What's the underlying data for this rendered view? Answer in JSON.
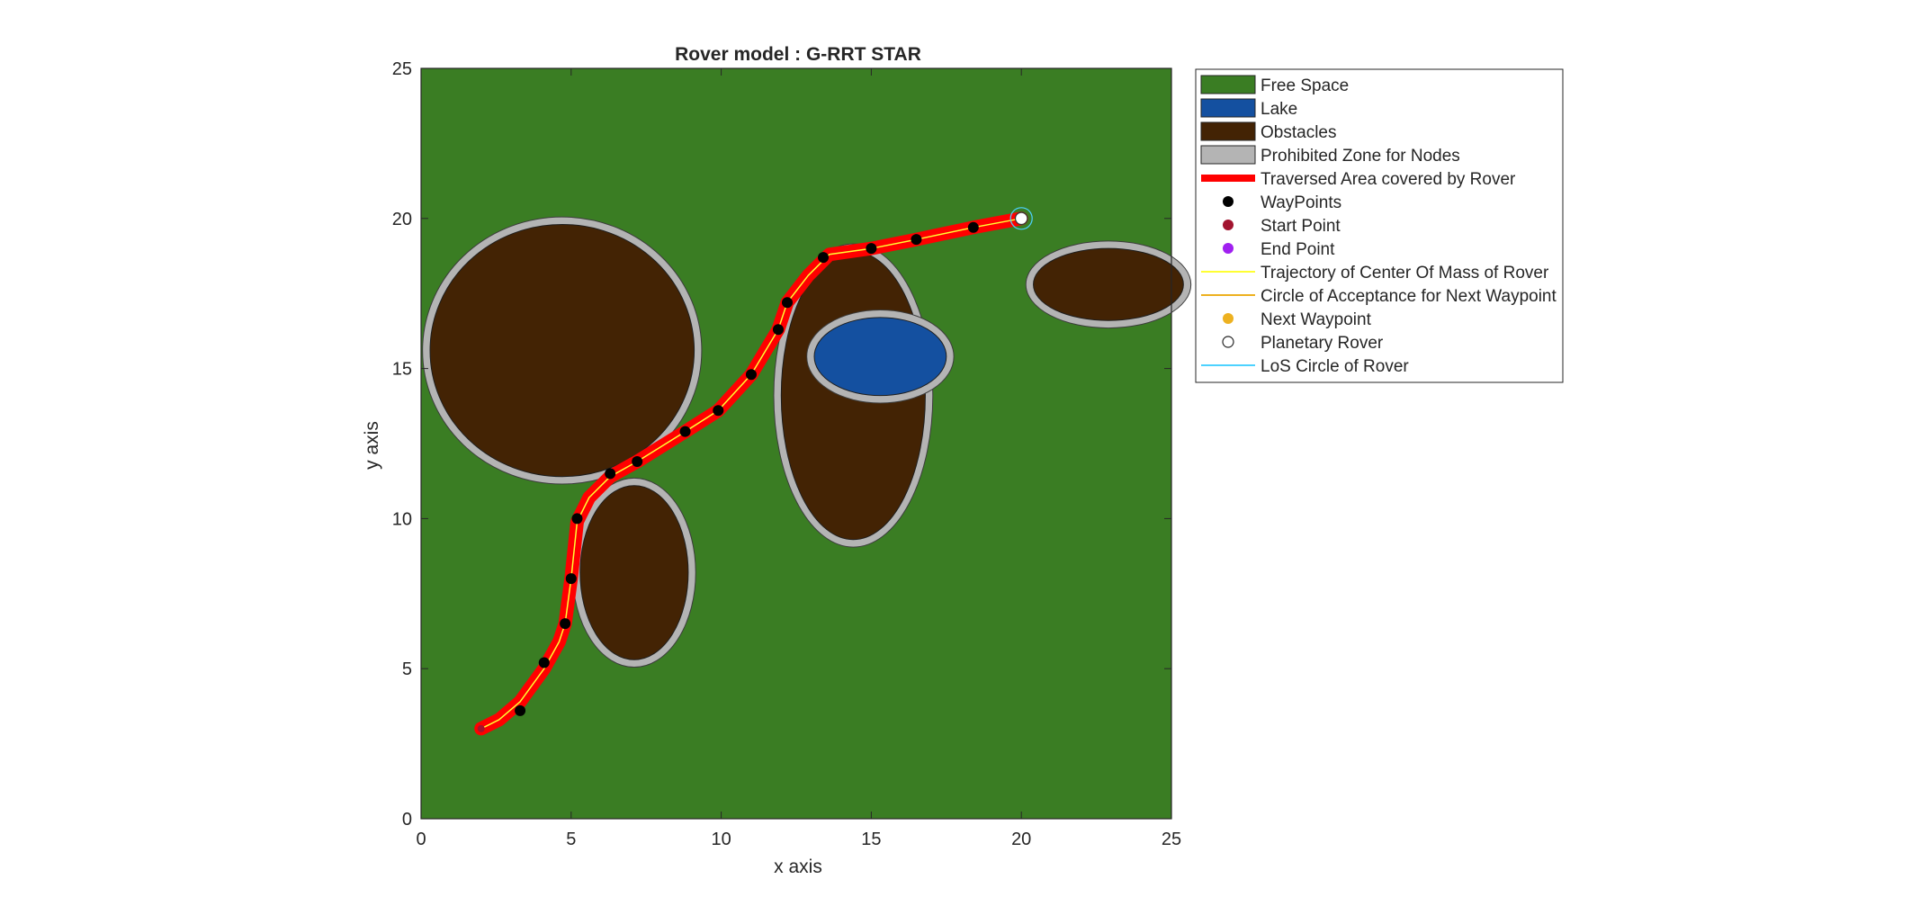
{
  "chart_data": {
    "type": "scatter",
    "title": "Rover model : G-RRT STAR",
    "xlabel": "x axis",
    "ylabel": "y axis",
    "xlim": [
      0,
      25
    ],
    "ylim": [
      0,
      25
    ],
    "x_ticks": [
      "0",
      "5",
      "10",
      "15",
      "20",
      "25"
    ],
    "y_ticks": [
      "0",
      "5",
      "10",
      "15",
      "20",
      "25"
    ],
    "grid": false,
    "legend_placement": "outside-right",
    "colors": {
      "free_space": "#3a7d23",
      "lake": "#1450a0",
      "obstacle": "#432304",
      "prohibited_zone": "#b4b4b4",
      "traversed_area": "#ff0000",
      "trajectory": "#ffff33",
      "waypoint": "#000000",
      "start_point": "#a2142f",
      "end_point": "#a020f0",
      "acceptance_circle": "#edb120",
      "next_waypoint": "#edb120",
      "planetary_rover": "#ffffff",
      "los_circle": "#4dd2ff"
    },
    "free_space": {
      "x_range": [
        0,
        25
      ],
      "y_range": [
        0,
        25
      ]
    },
    "obstacles": [
      {
        "cx": 4.7,
        "cy": 15.6,
        "rx": 4.4,
        "ry": 4.2
      },
      {
        "cx": 7.1,
        "cy": 8.2,
        "rx": 1.8,
        "ry": 2.9
      },
      {
        "cx": 14.4,
        "cy": 14.1,
        "rx": 2.4,
        "ry": 4.8
      },
      {
        "cx": 22.9,
        "cy": 17.8,
        "rx": 2.5,
        "ry": 1.2
      }
    ],
    "prohibited_zone_margin": 0.25,
    "lake": {
      "cx": 15.3,
      "cy": 15.4,
      "rx": 2.2,
      "ry": 1.3
    },
    "waypoints": [
      {
        "x": 3.3,
        "y": 3.6
      },
      {
        "x": 4.1,
        "y": 5.2
      },
      {
        "x": 4.8,
        "y": 6.5
      },
      {
        "x": 5.0,
        "y": 8.0
      },
      {
        "x": 5.2,
        "y": 10.0
      },
      {
        "x": 6.3,
        "y": 11.5
      },
      {
        "x": 7.2,
        "y": 11.9
      },
      {
        "x": 8.8,
        "y": 12.9
      },
      {
        "x": 9.9,
        "y": 13.6
      },
      {
        "x": 11.0,
        "y": 14.8
      },
      {
        "x": 11.9,
        "y": 16.3
      },
      {
        "x": 12.2,
        "y": 17.2
      },
      {
        "x": 13.4,
        "y": 18.7
      },
      {
        "x": 15.0,
        "y": 19.0
      },
      {
        "x": 16.5,
        "y": 19.3
      },
      {
        "x": 18.4,
        "y": 19.7
      }
    ],
    "start_point": {
      "x": 2.0,
      "y": 3.0
    },
    "end_point": {
      "x": 20.0,
      "y": 20.0
    },
    "trajectory": [
      [
        2.0,
        3.0
      ],
      [
        2.6,
        3.3
      ],
      [
        3.3,
        3.9
      ],
      [
        4.1,
        5.0
      ],
      [
        4.6,
        5.9
      ],
      [
        4.8,
        6.5
      ],
      [
        5.0,
        8.0
      ],
      [
        5.2,
        9.9
      ],
      [
        5.6,
        10.7
      ],
      [
        6.3,
        11.4
      ],
      [
        7.2,
        11.9
      ],
      [
        8.8,
        12.9
      ],
      [
        9.9,
        13.6
      ],
      [
        11.0,
        14.8
      ],
      [
        11.9,
        16.3
      ],
      [
        12.2,
        17.2
      ],
      [
        12.9,
        18.1
      ],
      [
        13.6,
        18.8
      ],
      [
        15.0,
        19.0
      ],
      [
        16.5,
        19.3
      ],
      [
        18.4,
        19.7
      ],
      [
        20.0,
        20.0
      ]
    ],
    "traversed_width": 0.45,
    "rover_position": {
      "x": 20.0,
      "y": 20.0
    },
    "rover_radius": 0.2,
    "legend": [
      {
        "label": "Free Space",
        "kind": "patch",
        "color_key": "free_space"
      },
      {
        "label": "Lake",
        "kind": "patch",
        "color_key": "lake"
      },
      {
        "label": "Obstacles",
        "kind": "patch",
        "color_key": "obstacle"
      },
      {
        "label": "Prohibited Zone for Nodes",
        "kind": "patch",
        "color_key": "prohibited_zone"
      },
      {
        "label": "Traversed Area covered by Rover",
        "kind": "thickline",
        "color_key": "traversed_area"
      },
      {
        "label": "WayPoints",
        "kind": "dot",
        "color_key": "waypoint"
      },
      {
        "label": "Start Point",
        "kind": "dot",
        "color_key": "start_point"
      },
      {
        "label": "End Point",
        "kind": "dot",
        "color_key": "end_point"
      },
      {
        "label": "Trajectory of Center Of Mass of Rover",
        "kind": "line",
        "color_key": "trajectory"
      },
      {
        "label": "Circle of Acceptance for Next Waypoint",
        "kind": "line",
        "color_key": "acceptance_circle"
      },
      {
        "label": "Next Waypoint",
        "kind": "dot",
        "color_key": "next_waypoint"
      },
      {
        "label": "Planetary Rover",
        "kind": "hollow",
        "color_key": "planetary_rover"
      },
      {
        "label": "LoS Circle of Rover",
        "kind": "line",
        "color_key": "los_circle"
      }
    ]
  }
}
